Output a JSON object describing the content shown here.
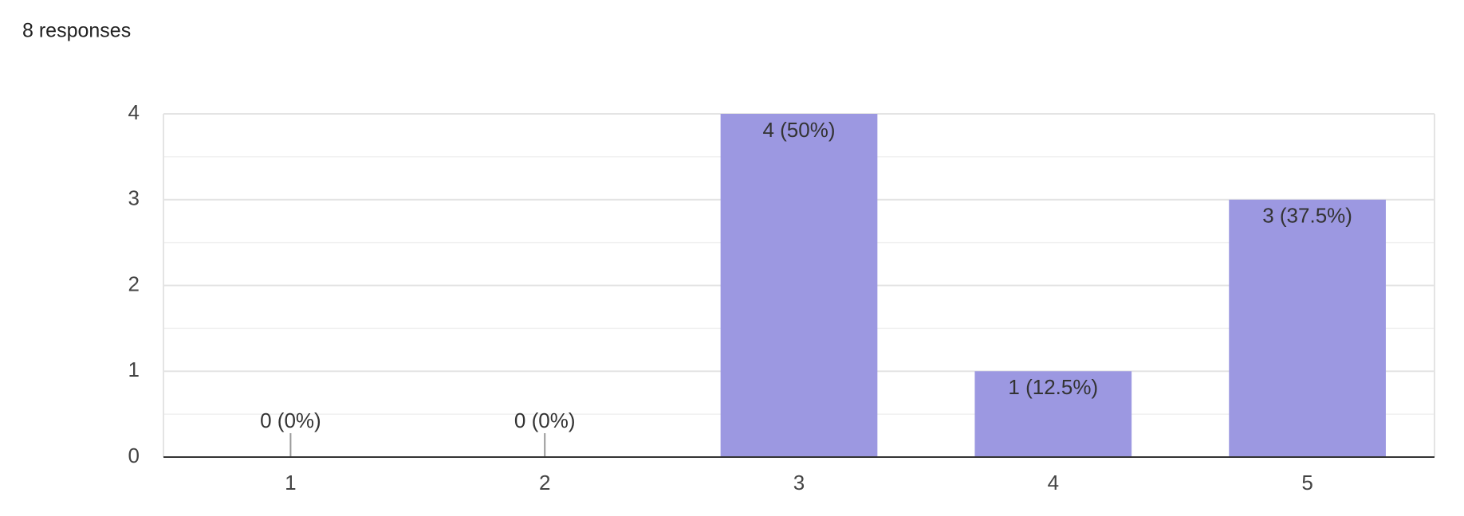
{
  "chart_data": {
    "type": "bar",
    "title": "8 responses",
    "categories": [
      "1",
      "2",
      "3",
      "4",
      "5"
    ],
    "values": [
      0,
      0,
      4,
      1,
      3
    ],
    "value_labels": [
      "0 (0%)",
      "0 (0%)",
      "4 (50%)",
      "1 (12.5%)",
      "3 (37.5%)"
    ],
    "color": "#9c98e1",
    "ylim": [
      0,
      4
    ],
    "yticks": [
      0,
      1,
      2,
      3,
      4
    ],
    "grid": true,
    "minor_grid": true
  }
}
